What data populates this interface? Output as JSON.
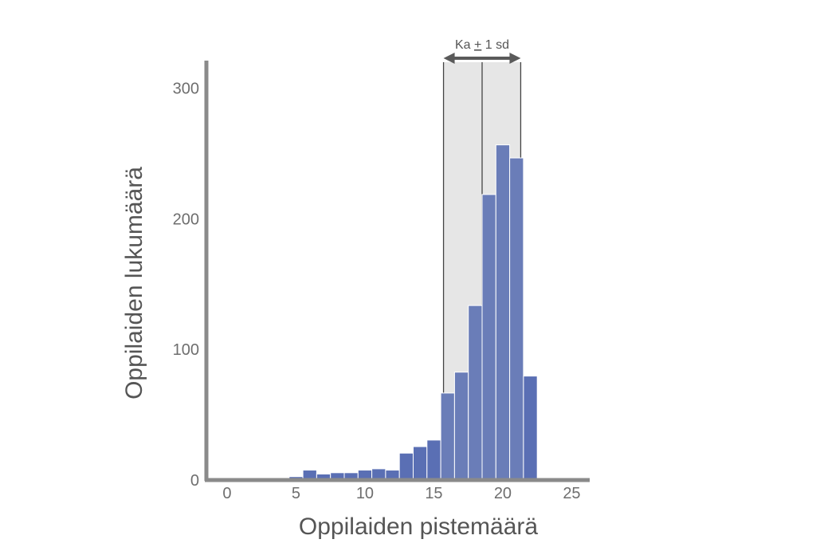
{
  "chart_data": {
    "type": "bar",
    "title": "",
    "xlabel": "Oppilaiden pistemäärä",
    "ylabel": "Oppilaiden lukumäärä",
    "x": [
      1,
      2,
      3,
      4,
      5,
      6,
      7,
      8,
      9,
      10,
      11,
      12,
      13,
      14,
      15,
      16,
      17,
      18,
      19,
      20,
      21,
      22
    ],
    "values": [
      0,
      1,
      0,
      0,
      2,
      7,
      4,
      5,
      5,
      7,
      8,
      7,
      20,
      25,
      30,
      66,
      82,
      133,
      218,
      256,
      246,
      79
    ],
    "xlim": [
      -1.5,
      26
    ],
    "ylim": [
      0,
      320
    ],
    "xticks": [
      0,
      5,
      10,
      15,
      20,
      25
    ],
    "yticks": [
      0,
      100,
      200,
      300
    ],
    "grid": false,
    "bar_color": "#5a6fb4",
    "shaded_bar_color": "#6a7db8",
    "band": {
      "label_parts": [
        "Ka ",
        "+",
        " 1 sd"
      ],
      "mean": 18.5,
      "lower": 15.7,
      "upper": 21.3,
      "fill": "#e6e6e6"
    }
  }
}
